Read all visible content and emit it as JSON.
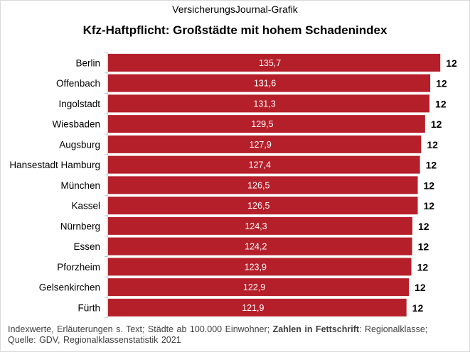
{
  "chart_data": {
    "type": "bar",
    "orientation": "horizontal",
    "subtitle": "VersicherungsJournal-Grafik",
    "title": "Kfz-Haftpflicht: Großstädte mit hohem Schadenindex",
    "categories": [
      "Berlin",
      "Offenbach",
      "Ingolstadt",
      "Wiesbaden",
      "Augsburg",
      "Hansestadt Hamburg",
      "München",
      "Kassel",
      "Nürnberg",
      "Essen",
      "Pforzheim",
      "Gelsenkirchen",
      "Fürth"
    ],
    "values": [
      135.7,
      131.6,
      131.3,
      129.5,
      127.9,
      127.4,
      126.5,
      126.5,
      124.3,
      124.2,
      123.9,
      122.9,
      121.9
    ],
    "value_labels": [
      "135,7",
      "131,6",
      "131,3",
      "129,5",
      "127,9",
      "127,4",
      "126,5",
      "126,5",
      "124,3",
      "124,2",
      "123,9",
      "122,9",
      "121,9"
    ],
    "regionalklasse": [
      "12",
      "12",
      "12",
      "12",
      "12",
      "12",
      "12",
      "12",
      "12",
      "12",
      "12",
      "12",
      "12"
    ],
    "xlim": [
      0,
      140
    ],
    "grid": false,
    "bar_color": "#b51f2a",
    "value_label_color": "#ffffff"
  },
  "footer": {
    "line1_a": "Indexwerte,  Erläuterungen  s. Text; Städte ab 100.000  Einwohner; ",
    "line1_bold": "Zahlen in Fettschrift",
    "line1_b": ": Regionalklasse;",
    "line2": "Quelle: GDV, Regionalklassenstatistik 2021"
  }
}
